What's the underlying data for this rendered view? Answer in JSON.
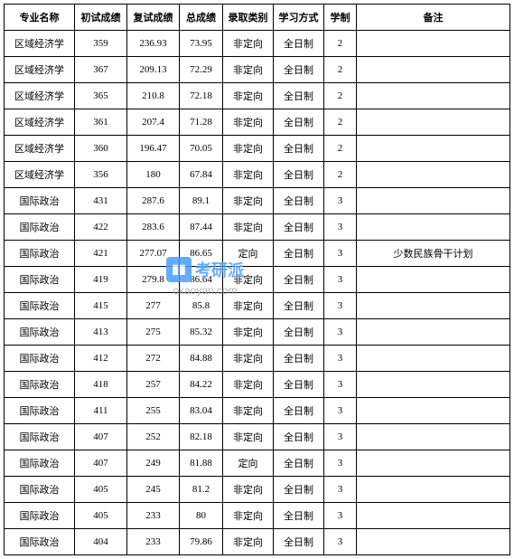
{
  "table": {
    "columns": [
      {
        "key": "major",
        "label": "专业名称",
        "class": "col-major"
      },
      {
        "key": "score1",
        "label": "初试成绩",
        "class": "col-score1"
      },
      {
        "key": "score2",
        "label": "复试成绩",
        "class": "col-score2"
      },
      {
        "key": "total",
        "label": "总成绩",
        "class": "col-total"
      },
      {
        "key": "category",
        "label": "录取类别",
        "class": "col-category"
      },
      {
        "key": "mode",
        "label": "学习方式",
        "class": "col-mode"
      },
      {
        "key": "duration",
        "label": "学制",
        "class": "col-duration"
      },
      {
        "key": "remark",
        "label": "备注",
        "class": "col-remark"
      }
    ],
    "rows": [
      {
        "major": "区域经济学",
        "score1": "359",
        "score2": "236.93",
        "total": "73.95",
        "category": "非定向",
        "mode": "全日制",
        "duration": "2",
        "remark": ""
      },
      {
        "major": "区域经济学",
        "score1": "367",
        "score2": "209.13",
        "total": "72.29",
        "category": "非定向",
        "mode": "全日制",
        "duration": "2",
        "remark": ""
      },
      {
        "major": "区域经济学",
        "score1": "365",
        "score2": "210.8",
        "total": "72.18",
        "category": "非定向",
        "mode": "全日制",
        "duration": "2",
        "remark": ""
      },
      {
        "major": "区域经济学",
        "score1": "361",
        "score2": "207.4",
        "total": "71.28",
        "category": "非定向",
        "mode": "全日制",
        "duration": "2",
        "remark": ""
      },
      {
        "major": "区域经济学",
        "score1": "360",
        "score2": "196.47",
        "total": "70.05",
        "category": "非定向",
        "mode": "全日制",
        "duration": "2",
        "remark": ""
      },
      {
        "major": "区域经济学",
        "score1": "356",
        "score2": "180",
        "total": "67.84",
        "category": "非定向",
        "mode": "全日制",
        "duration": "2",
        "remark": ""
      },
      {
        "major": "国际政治",
        "score1": "431",
        "score2": "287.6",
        "total": "89.1",
        "category": "非定向",
        "mode": "全日制",
        "duration": "3",
        "remark": ""
      },
      {
        "major": "国际政治",
        "score1": "422",
        "score2": "283.6",
        "total": "87.44",
        "category": "非定向",
        "mode": "全日制",
        "duration": "3",
        "remark": ""
      },
      {
        "major": "国际政治",
        "score1": "421",
        "score2": "277.07",
        "total": "86.65",
        "category": "定向",
        "mode": "全日制",
        "duration": "3",
        "remark": "少数民族骨干计划"
      },
      {
        "major": "国际政治",
        "score1": "419",
        "score2": "279.8",
        "total": "86.64",
        "category": "非定向",
        "mode": "全日制",
        "duration": "3",
        "remark": ""
      },
      {
        "major": "国际政治",
        "score1": "415",
        "score2": "277",
        "total": "85.8",
        "category": "非定向",
        "mode": "全日制",
        "duration": "3",
        "remark": ""
      },
      {
        "major": "国际政治",
        "score1": "413",
        "score2": "275",
        "total": "85.32",
        "category": "非定向",
        "mode": "全日制",
        "duration": "3",
        "remark": ""
      },
      {
        "major": "国际政治",
        "score1": "412",
        "score2": "272",
        "total": "84.88",
        "category": "非定向",
        "mode": "全日制",
        "duration": "3",
        "remark": ""
      },
      {
        "major": "国际政治",
        "score1": "418",
        "score2": "257",
        "total": "84.22",
        "category": "非定向",
        "mode": "全日制",
        "duration": "3",
        "remark": ""
      },
      {
        "major": "国际政治",
        "score1": "411",
        "score2": "255",
        "total": "83.04",
        "category": "非定向",
        "mode": "全日制",
        "duration": "3",
        "remark": ""
      },
      {
        "major": "国际政治",
        "score1": "407",
        "score2": "252",
        "total": "82.18",
        "category": "非定向",
        "mode": "全日制",
        "duration": "3",
        "remark": ""
      },
      {
        "major": "国际政治",
        "score1": "407",
        "score2": "249",
        "total": "81.88",
        "category": "定向",
        "mode": "全日制",
        "duration": "3",
        "remark": ""
      },
      {
        "major": "国际政治",
        "score1": "405",
        "score2": "245",
        "total": "81.2",
        "category": "非定向",
        "mode": "全日制",
        "duration": "3",
        "remark": ""
      },
      {
        "major": "国际政治",
        "score1": "405",
        "score2": "233",
        "total": "80",
        "category": "非定向",
        "mode": "全日制",
        "duration": "3",
        "remark": ""
      },
      {
        "major": "国际政治",
        "score1": "404",
        "score2": "233",
        "total": "79.86",
        "category": "非定向",
        "mode": "全日制",
        "duration": "3",
        "remark": ""
      }
    ],
    "border_color": "#000000",
    "background_color": "#ffffff",
    "font_size": 11,
    "header_font_weight": "bold"
  },
  "watermark": {
    "brand_text": "考研派",
    "url_text": "okaoyan.com",
    "brand_color": "#4a9eff",
    "url_color": "#aaaaaa"
  }
}
